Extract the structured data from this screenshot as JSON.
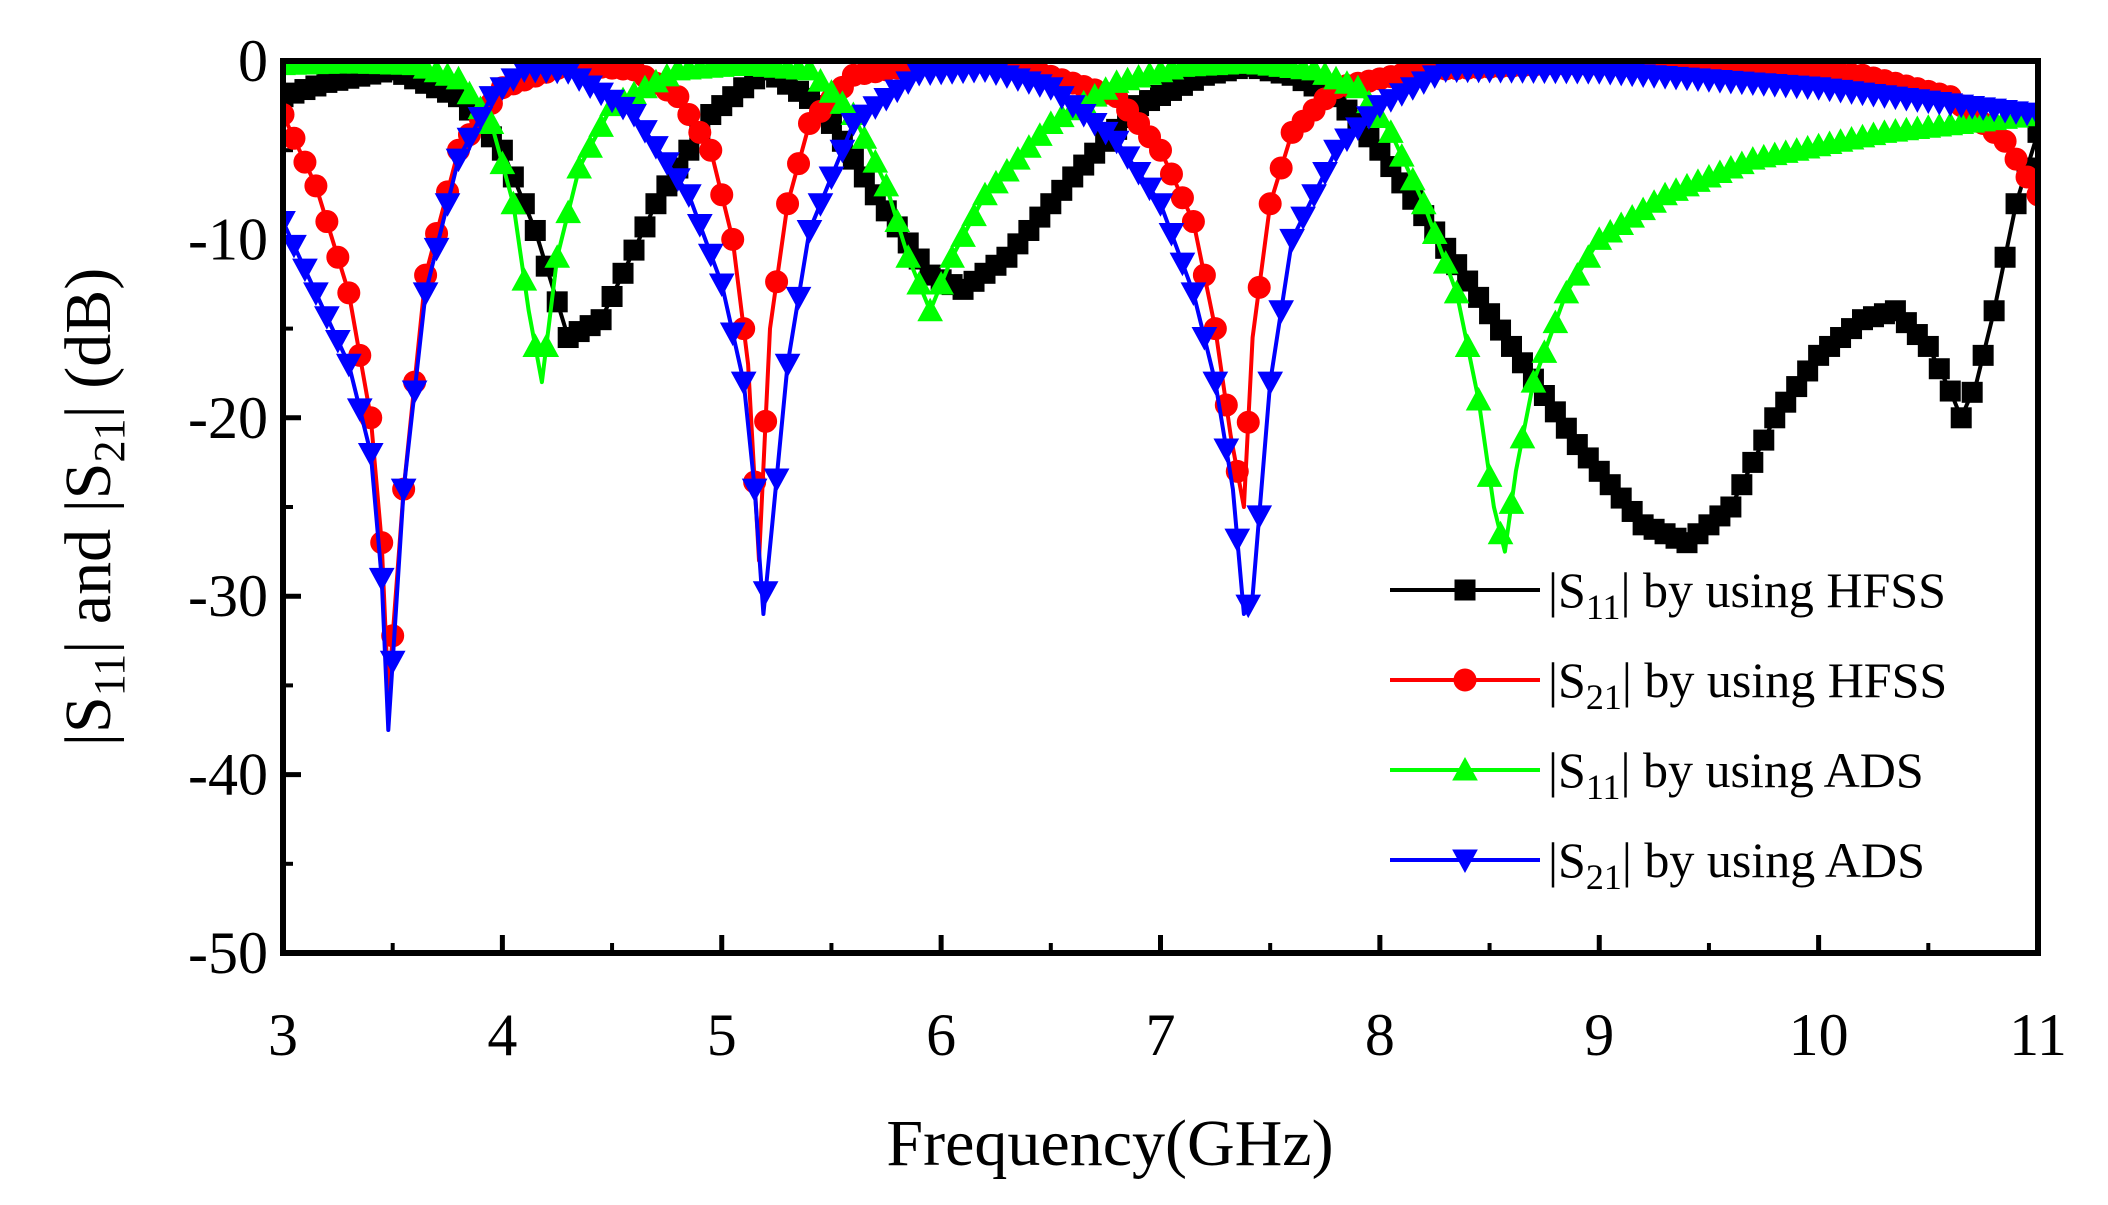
{
  "chart_data": {
    "type": "line",
    "title": "",
    "xlabel": "Frequency(GHz)",
    "ylabel": "|S11| and |S21| (dB)",
    "ylabel_parts": {
      "a": "|S",
      "a_sub": "11",
      "b": "| and |S",
      "b_sub": "21",
      "c": "| (dB)"
    },
    "xlim": [
      3,
      11
    ],
    "ylim": [
      -50,
      0
    ],
    "xticks": [
      3,
      4,
      5,
      6,
      7,
      8,
      9,
      10,
      11
    ],
    "yticks": [
      0,
      -10,
      -20,
      -30,
      -40,
      -50
    ],
    "legend_position": "lower-right",
    "series": [
      {
        "name": "|S11| by using HFSS",
        "legend": {
          "pre": "|S",
          "sub": "11",
          "post": "|  by using HFSS"
        },
        "color": "#000000",
        "marker": "square",
        "x": [
          3.0,
          3.2,
          3.5,
          3.8,
          4.0,
          4.15,
          4.3,
          4.45,
          4.7,
          4.95,
          5.2,
          5.45,
          5.7,
          5.95,
          6.1,
          6.3,
          6.6,
          6.9,
          7.2,
          7.4,
          7.6,
          7.8,
          8.0,
          8.3,
          8.6,
          8.9,
          9.2,
          9.4,
          9.6,
          9.8,
          10.0,
          10.2,
          10.35,
          10.5,
          10.6,
          10.65,
          10.72,
          10.8,
          10.9,
          11.0
        ],
        "y": [
          -2.0,
          -1.2,
          -0.5,
          -2.0,
          -5.0,
          -9.5,
          -15.5,
          -14.5,
          -8.0,
          -3.0,
          -0.5,
          -2.5,
          -7.5,
          -12.0,
          -12.8,
          -11.0,
          -6.5,
          -2.5,
          -0.8,
          -0.3,
          -0.8,
          -2.0,
          -5.0,
          -10.5,
          -16.0,
          -21.5,
          -26.0,
          -27.0,
          -25.0,
          -20.0,
          -16.5,
          -14.5,
          -14.0,
          -16.0,
          -18.5,
          -20.0,
          -18.0,
          -14.0,
          -8.0,
          -4.0
        ]
      },
      {
        "name": "|S21| by using HFSS",
        "legend": {
          "pre": "|S",
          "sub": "21",
          "post": "|  by using HFSS"
        },
        "color": "#ff0000",
        "marker": "circle",
        "x": [
          3.0,
          3.15,
          3.3,
          3.4,
          3.45,
          3.48,
          3.55,
          3.65,
          3.8,
          4.0,
          4.3,
          4.6,
          4.8,
          4.95,
          5.05,
          5.12,
          5.17,
          5.22,
          5.3,
          5.4,
          5.6,
          5.9,
          6.3,
          6.8,
          7.0,
          7.15,
          7.25,
          7.32,
          7.38,
          7.42,
          7.5,
          7.6,
          7.8,
          8.2,
          8.8,
          9.5,
          10.2,
          10.6,
          10.85,
          11.0
        ],
        "y": [
          -3.0,
          -7.0,
          -13.0,
          -20.0,
          -27.0,
          -35.5,
          -24.0,
          -12.0,
          -5.0,
          -1.5,
          -0.2,
          -0.5,
          -2.0,
          -5.0,
          -10.0,
          -17.0,
          -28.0,
          -15.0,
          -8.0,
          -3.5,
          -0.8,
          -0.2,
          -0.1,
          -2.0,
          -5.0,
          -9.0,
          -15.0,
          -21.0,
          -25.0,
          -15.5,
          -8.0,
          -4.0,
          -1.5,
          -0.5,
          -0.2,
          -0.3,
          -0.8,
          -2.0,
          -4.5,
          -7.5
        ]
      },
      {
        "name": "|S11| by using ADS",
        "legend": {
          "pre": "|S",
          "sub": "11",
          "post": "|  by using ADS"
        },
        "color": "#00ff00",
        "marker": "triangle-up",
        "x": [
          3.0,
          3.3,
          3.6,
          3.8,
          3.95,
          4.05,
          4.12,
          4.18,
          4.25,
          4.35,
          4.5,
          4.8,
          5.1,
          5.4,
          5.6,
          5.75,
          5.85,
          5.95,
          6.05,
          6.2,
          6.5,
          6.8,
          7.1,
          7.4,
          7.7,
          7.9,
          8.05,
          8.2,
          8.35,
          8.45,
          8.52,
          8.57,
          8.62,
          8.7,
          8.85,
          9.0,
          9.3,
          9.7,
          10.3,
          11.0
        ],
        "y": [
          -0.2,
          -0.1,
          -0.2,
          -1.0,
          -3.5,
          -8.0,
          -14.0,
          -18.0,
          -11.0,
          -6.0,
          -2.5,
          -0.5,
          -0.2,
          -0.5,
          -3.0,
          -7.0,
          -11.0,
          -14.0,
          -11.0,
          -7.5,
          -3.5,
          -1.2,
          -0.3,
          -0.1,
          -0.5,
          -1.5,
          -4.0,
          -8.0,
          -13.0,
          -19.0,
          -25.0,
          -27.5,
          -23.0,
          -18.0,
          -13.0,
          -10.0,
          -7.5,
          -5.5,
          -4.0,
          -3.0
        ]
      },
      {
        "name": "|S21| by using ADS",
        "legend": {
          "pre": "|S",
          "sub": "21",
          "post": "|  by using ADS"
        },
        "color": "#0000ff",
        "marker": "triangle-down",
        "x": [
          3.0,
          3.15,
          3.3,
          3.4,
          3.45,
          3.48,
          3.55,
          3.65,
          3.8,
          3.95,
          4.1,
          4.3,
          4.6,
          4.85,
          5.0,
          5.1,
          5.15,
          5.19,
          5.23,
          5.3,
          5.4,
          5.6,
          5.9,
          6.2,
          6.5,
          6.8,
          7.0,
          7.15,
          7.25,
          7.33,
          7.38,
          7.42,
          7.5,
          7.6,
          7.8,
          8.0,
          8.3,
          9.0,
          10.0,
          11.0
        ],
        "y": [
          -9.0,
          -13.0,
          -17.0,
          -22.0,
          -29.0,
          -37.5,
          -24.0,
          -13.0,
          -5.5,
          -2.0,
          -0.5,
          -0.6,
          -3.0,
          -7.5,
          -12.5,
          -18.0,
          -24.0,
          -31.0,
          -26.0,
          -17.0,
          -9.5,
          -3.5,
          -0.7,
          -0.5,
          -1.5,
          -4.5,
          -8.0,
          -13.0,
          -18.0,
          -24.0,
          -31.0,
          -30.0,
          -18.0,
          -10.0,
          -5.0,
          -2.5,
          -0.5,
          -0.6,
          -1.5,
          -3.0
        ]
      }
    ]
  }
}
